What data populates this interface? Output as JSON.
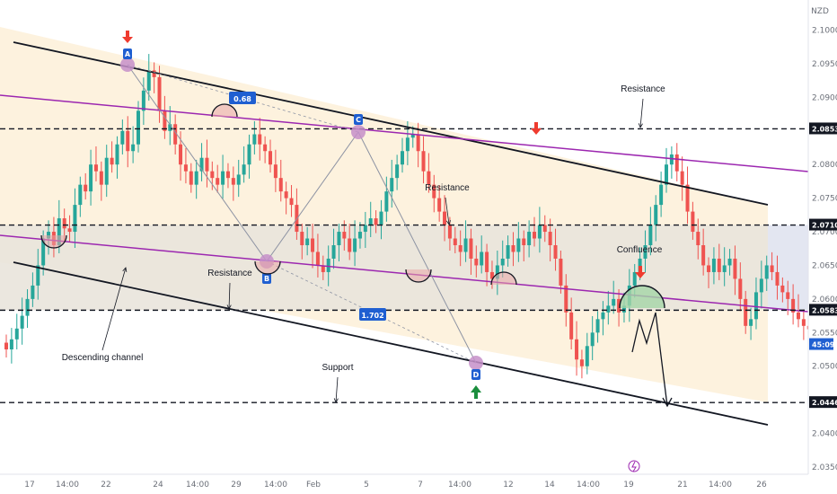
{
  "chart_data": {
    "type": "candlestick",
    "currency": "NZD",
    "x_ticks": [
      "17",
      "14:00",
      "22",
      "24",
      "14:00",
      "29",
      "14:00",
      "Feb",
      "5",
      "7",
      "14:00",
      "12",
      "14",
      "14:00",
      "19",
      "21",
      "14:00",
      "26"
    ],
    "y_ticks": [
      "2.10000",
      "2.09500",
      "2.09000",
      "2.08000",
      "2.07500",
      "2.07000",
      "2.06500",
      "2.06000",
      "2.05500",
      "2.05000",
      "2.04000",
      "2.03500"
    ],
    "ylim": [
      2.033,
      2.1035
    ],
    "levels": [
      {
        "value": 2.08531,
        "label": "2.08531"
      },
      {
        "value": 2.071,
        "label": "2.07100"
      },
      {
        "value": 2.05833,
        "label": "2.05833"
      },
      {
        "value": 2.0446,
        "label": "2.04460"
      }
    ],
    "current_price": {
      "value": 2.0543,
      "countdown": "45:09"
    },
    "pattern_points": [
      {
        "label": "A",
        "value": 2.0943
      },
      {
        "label": "B",
        "value": 2.0636
      },
      {
        "label": "C",
        "value": 2.0855
      },
      {
        "label": "D",
        "value": 2.0497
      }
    ],
    "fib_ratios": [
      "0.68",
      "1.702"
    ],
    "annotations": [
      "Resistance",
      "Resistance",
      "Resistance",
      "Confluence",
      "Descending channel",
      "Support"
    ],
    "candles": {
      "path": [
        2.0535,
        2.0525,
        2.054,
        2.0556,
        2.0575,
        2.06,
        2.062,
        2.065,
        2.069,
        2.07,
        2.068,
        2.072,
        2.0705,
        2.07,
        2.074,
        2.077,
        2.076,
        2.08,
        2.079,
        2.077,
        2.081,
        2.08,
        2.083,
        2.085,
        2.082,
        2.083,
        2.088,
        2.091,
        2.094,
        2.093,
        2.088,
        2.085,
        2.086,
        2.083,
        2.08,
        2.079,
        2.077,
        2.079,
        2.081,
        2.079,
        2.078,
        2.077,
        2.079,
        2.078,
        2.077,
        2.0785,
        2.08,
        2.083,
        2.0845,
        2.083,
        2.082,
        2.08,
        2.078,
        2.076,
        2.075,
        2.074,
        2.07,
        2.068,
        2.069,
        2.067,
        2.065,
        2.064,
        2.066,
        2.068,
        2.07,
        2.069,
        2.067,
        2.069,
        2.07,
        2.071,
        2.072,
        2.071,
        2.073,
        2.076,
        2.078,
        2.08,
        2.082,
        2.084,
        2.0845,
        2.082,
        2.079,
        2.077,
        2.075,
        2.073,
        2.071,
        2.069,
        2.068,
        2.067,
        2.069,
        2.066,
        2.065,
        2.067,
        2.064,
        2.063,
        2.065,
        2.066,
        2.068,
        2.067,
        2.069,
        2.068,
        2.07,
        2.069,
        2.071,
        2.07,
        2.068,
        2.066,
        2.062,
        2.058,
        2.054,
        2.051,
        2.05,
        2.053,
        2.055,
        2.057,
        2.058,
        2.059,
        2.06,
        2.058,
        2.059,
        2.062,
        2.064,
        2.066,
        2.068,
        2.071,
        2.074,
        2.077,
        2.08,
        2.0815,
        2.079,
        2.077,
        2.073,
        2.07,
        2.068,
        2.065,
        2.064,
        2.066,
        2.064,
        2.065,
        2.066,
        2.063,
        2.06,
        2.056,
        2.057,
        2.061,
        2.063,
        2.065,
        2.064,
        2.062,
        2.061,
        2.06,
        2.058,
        2.057,
        2.056,
        2.0555,
        2.0545,
        2.0535
      ],
      "start_day_offset": -0.9,
      "bars_per_day": 6
    }
  }
}
